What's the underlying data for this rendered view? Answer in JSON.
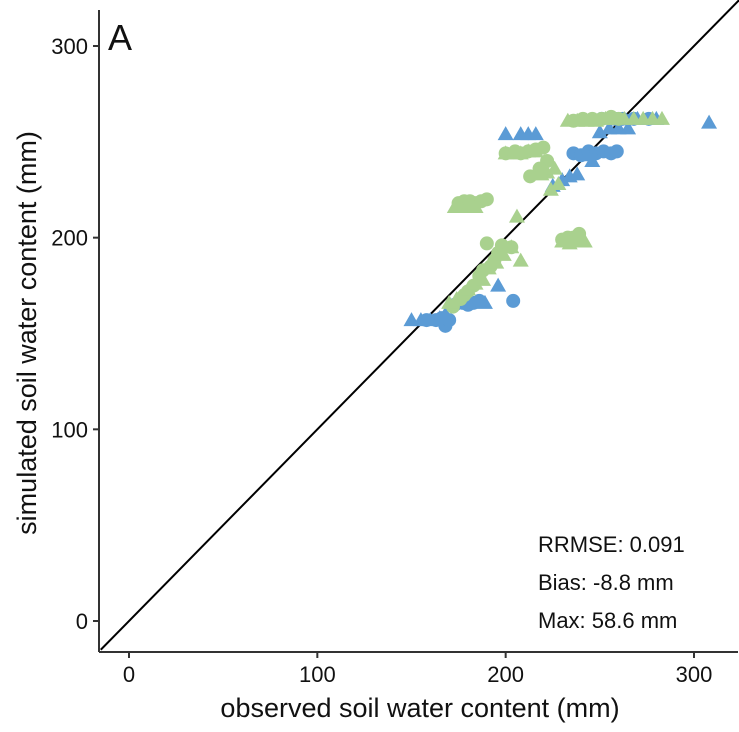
{
  "chart_data": {
    "type": "scatter",
    "panel_label": "A",
    "xlabel": "observed soil water content (mm)",
    "ylabel": "simulated soil water content (mm)",
    "xlim": [
      -15,
      325
    ],
    "ylim": [
      -15,
      320
    ],
    "x_ticks": [
      0,
      100,
      200,
      300
    ],
    "y_ticks": [
      0,
      100,
      200,
      300
    ],
    "reference_line": "1:1",
    "grid": false,
    "stats": [
      "RRMSE: 0.091",
      "Bias: -8.8 mm",
      "Max: 58.6 mm"
    ],
    "colors": {
      "blue": "#5b9bd5",
      "green": "#a9d18e",
      "axis": "#333333",
      "line": "#000000"
    },
    "series": [
      {
        "color": "blue",
        "marker": "circle",
        "points": [
          [
            158,
            157
          ],
          [
            163,
            157
          ],
          [
            166,
            158
          ],
          [
            168,
            154
          ],
          [
            170,
            157
          ],
          [
            173,
            165
          ],
          [
            177,
            166
          ],
          [
            180,
            165
          ],
          [
            183,
            166
          ],
          [
            186,
            167
          ],
          [
            204,
            167
          ],
          [
            236,
            244
          ],
          [
            240,
            243
          ],
          [
            244,
            245
          ],
          [
            248,
            244
          ],
          [
            252,
            245
          ],
          [
            256,
            244
          ],
          [
            259,
            245
          ],
          [
            251,
            262
          ],
          [
            258,
            262
          ],
          [
            262,
            262
          ],
          [
            268,
            262
          ],
          [
            276,
            262
          ]
        ]
      },
      {
        "color": "blue",
        "marker": "triangle",
        "points": [
          [
            150,
            157
          ],
          [
            155,
            157
          ],
          [
            160,
            157
          ],
          [
            165,
            158
          ],
          [
            168,
            160
          ],
          [
            189,
            166
          ],
          [
            196,
            175
          ],
          [
            200,
            254
          ],
          [
            208,
            254
          ],
          [
            212,
            254
          ],
          [
            216,
            254
          ],
          [
            225,
            227
          ],
          [
            230,
            230
          ],
          [
            234,
            232
          ],
          [
            238,
            233
          ],
          [
            243,
            243
          ],
          [
            246,
            240
          ],
          [
            250,
            255
          ],
          [
            255,
            257
          ],
          [
            260,
            257
          ],
          [
            265,
            257
          ],
          [
            270,
            262
          ],
          [
            280,
            262
          ],
          [
            308,
            260
          ]
        ]
      },
      {
        "color": "green",
        "marker": "circle",
        "points": [
          [
            172,
            164
          ],
          [
            176,
            168
          ],
          [
            178,
            170
          ],
          [
            180,
            172
          ],
          [
            183,
            175
          ],
          [
            186,
            180
          ],
          [
            188,
            183
          ],
          [
            190,
            197
          ],
          [
            192,
            185
          ],
          [
            194,
            188
          ],
          [
            196,
            192
          ],
          [
            198,
            196
          ],
          [
            203,
            195
          ],
          [
            175,
            218
          ],
          [
            178,
            219
          ],
          [
            181,
            219
          ],
          [
            184,
            218
          ],
          [
            187,
            219
          ],
          [
            190,
            220
          ],
          [
            200,
            244
          ],
          [
            205,
            245
          ],
          [
            208,
            244
          ],
          [
            212,
            245
          ],
          [
            216,
            246
          ],
          [
            220,
            247
          ],
          [
            222,
            240
          ],
          [
            218,
            236
          ],
          [
            213,
            232
          ],
          [
            230,
            199
          ],
          [
            233,
            200
          ],
          [
            236,
            200
          ],
          [
            239,
            202
          ],
          [
            236,
            261
          ],
          [
            241,
            262
          ],
          [
            246,
            262
          ],
          [
            251,
            262
          ],
          [
            256,
            263
          ],
          [
            260,
            262
          ]
        ]
      },
      {
        "color": "green",
        "marker": "triangle",
        "points": [
          [
            170,
            166
          ],
          [
            174,
            168
          ],
          [
            180,
            173
          ],
          [
            184,
            176
          ],
          [
            188,
            178
          ],
          [
            191,
            184
          ],
          [
            195,
            187
          ],
          [
            199,
            191
          ],
          [
            203,
            195
          ],
          [
            206,
            211
          ],
          [
            208,
            188
          ],
          [
            173,
            216
          ],
          [
            176,
            216
          ],
          [
            180,
            216
          ],
          [
            184,
            216
          ],
          [
            200,
            244
          ],
          [
            204,
            244
          ],
          [
            208,
            244
          ],
          [
            212,
            245
          ],
          [
            216,
            245
          ],
          [
            219,
            233
          ],
          [
            222,
            234
          ],
          [
            226,
            236
          ],
          [
            230,
            198
          ],
          [
            234,
            197
          ],
          [
            238,
            198
          ],
          [
            242,
            198
          ],
          [
            224,
            225
          ],
          [
            228,
            228
          ],
          [
            233,
            261
          ],
          [
            238,
            261
          ],
          [
            243,
            261
          ],
          [
            248,
            261
          ],
          [
            253,
            262
          ],
          [
            258,
            262
          ],
          [
            263,
            262
          ],
          [
            268,
            262
          ],
          [
            273,
            262
          ],
          [
            278,
            262
          ],
          [
            283,
            262
          ]
        ]
      }
    ]
  }
}
